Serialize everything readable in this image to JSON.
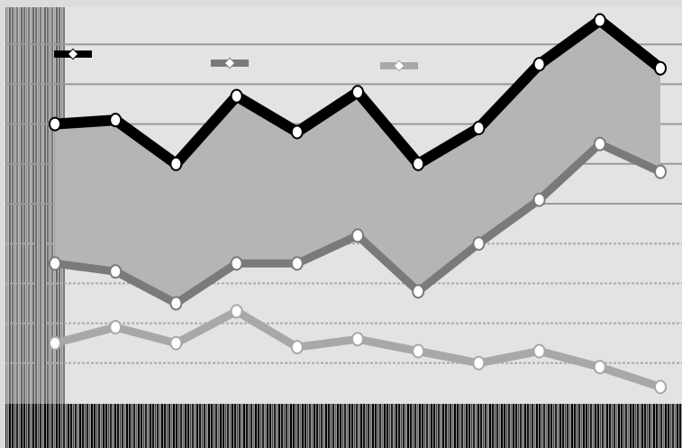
{
  "chart_data": {
    "type": "line",
    "series": [
      {
        "color": "#000000",
        "values": [
          70,
          71,
          60,
          77,
          68,
          78,
          60,
          69,
          85,
          96,
          84
        ]
      },
      {
        "color": "#7a7a7a",
        "values": [
          35,
          33,
          25,
          35,
          35,
          42,
          28,
          40,
          51,
          65,
          58
        ]
      },
      {
        "color": "#a8a8a8",
        "values": [
          15,
          19,
          15,
          23,
          14,
          16,
          13,
          10,
          13,
          9,
          4
        ]
      }
    ],
    "fill_between": [
      0,
      1
    ],
    "fill_color": "#b5b5b5",
    "ylim": [
      0,
      100
    ],
    "yticks": [
      10,
      20,
      30,
      40,
      50,
      60,
      70,
      80,
      90
    ],
    "grid": true,
    "legend": "top"
  }
}
